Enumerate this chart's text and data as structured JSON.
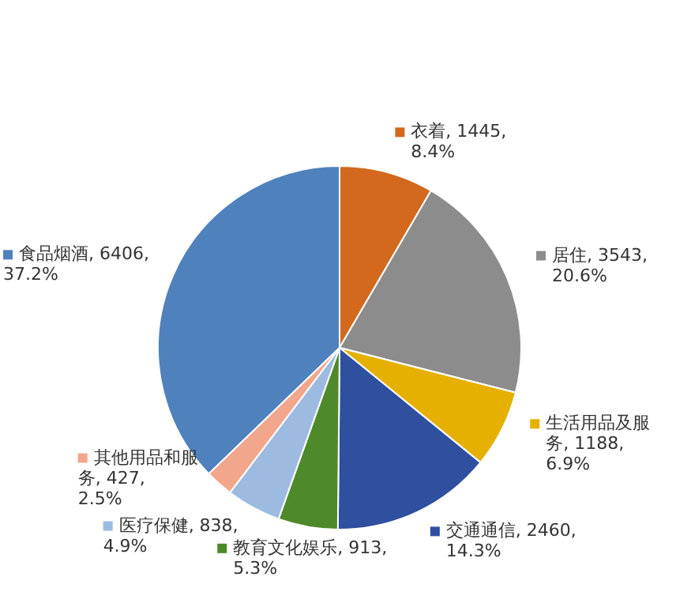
{
  "chart_data": {
    "type": "pie",
    "categories": [
      "食品烟酒",
      "衣着",
      "居住",
      "生活用品及服务",
      "交通通信",
      "教育文化娱乐",
      "医疗保健",
      "其他用品和服务"
    ],
    "values": [
      6406,
      1445,
      3543,
      1188,
      2460,
      913,
      838,
      427
    ],
    "value_labels": [
      "6406, 37.2%",
      "1445, 8.4%",
      "3543, 20.6%",
      "1188, 6.9%",
      "2460, 14.3%",
      "913, 5.3%",
      "838, 4.9%",
      "427, 2.5%"
    ],
    "colors": [
      "#4f81bd",
      "#d2691e",
      "#8c8c8c",
      "#e6b000",
      "#2f4f9f",
      "#4e8a2a",
      "#9dbbe0",
      "#f2a68c"
    ],
    "legend": "bottom left"
  }
}
